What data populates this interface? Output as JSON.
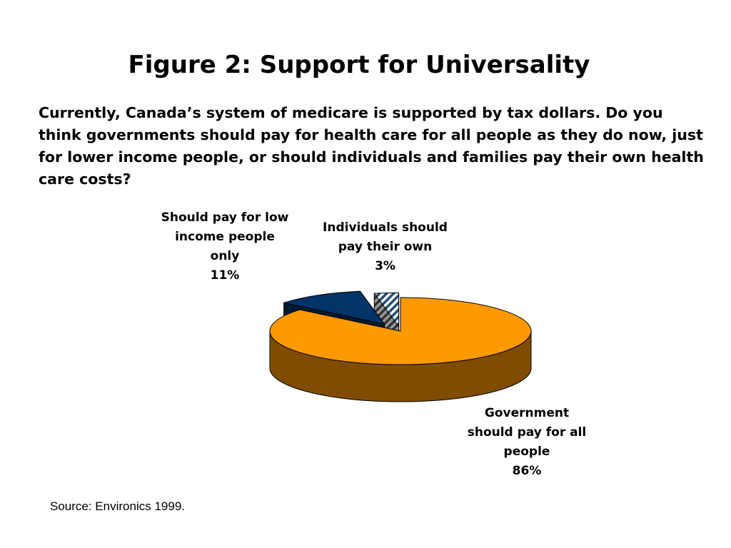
{
  "slide": {
    "title": "Figure 2: Support for Universality",
    "question": "Currently, Canada’s system of medicare is supported by tax dollars. Do you think governments should pay for health care for all people as they do now, just for lower income people, or should individuals and families pay their own health care costs?",
    "source": "Source: Environics 1999."
  },
  "chart_data": {
    "type": "pie",
    "style": "3d-exploded",
    "slices": [
      {
        "label": "Government should pay for all people",
        "value": 86,
        "value_label": "86%",
        "label_lines": [
          "Government",
          "should pay for all",
          "people"
        ],
        "color": "#FF9900",
        "side_color": "#7F4C00",
        "pattern": "solid"
      },
      {
        "label": "Should pay for low income people only",
        "value": 11,
        "value_label": "11%",
        "label_lines": [
          "Should pay for low",
          "income people",
          "only"
        ],
        "color": "#003366",
        "side_color": "#001A33",
        "pattern": "solid"
      },
      {
        "label": "Individuals should pay their own",
        "value": 3,
        "value_label": "3%",
        "label_lines": [
          "Individuals should",
          "pay their own"
        ],
        "color": "#1F4E79",
        "side_color": "#333333",
        "pattern": "diagonal-hatch"
      }
    ]
  }
}
